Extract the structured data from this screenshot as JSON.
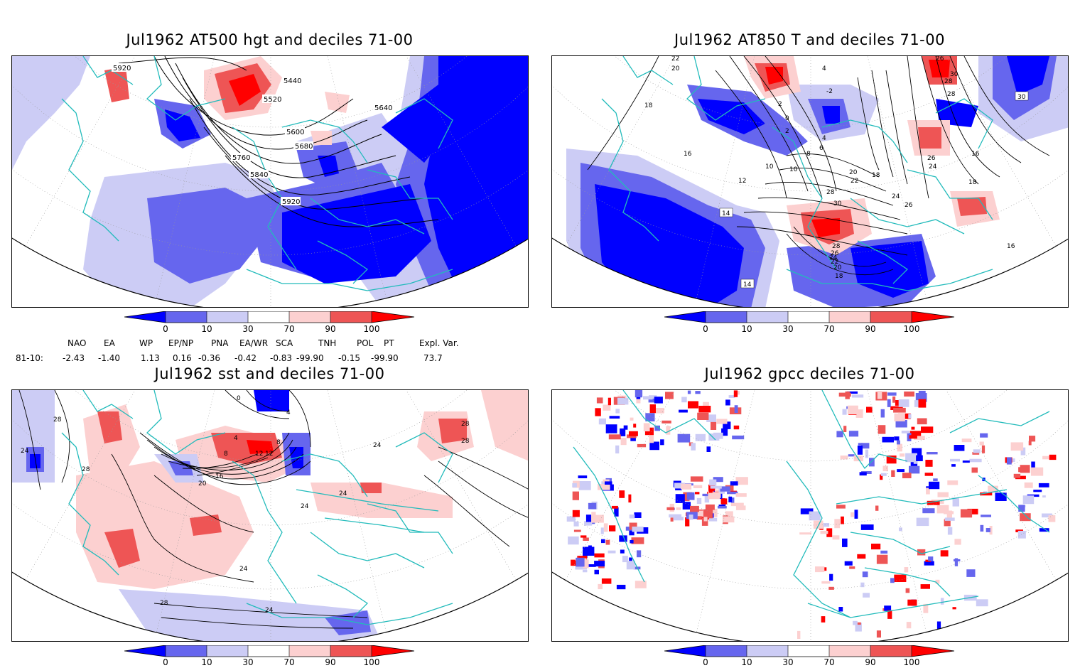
{
  "panels": [
    {
      "id": "p1",
      "title": "Jul1962 AT500 hgt and deciles 71-00",
      "contour_labels": [
        "5920",
        "5440",
        "5520",
        "5600",
        "5640",
        "5680",
        "5760",
        "5840",
        "5920"
      ]
    },
    {
      "id": "p2",
      "title": "Jul1962 AT850 T and deciles 71-00",
      "contour_labels": [
        "22",
        "20",
        "18",
        "16",
        "12",
        "10",
        "14",
        "14",
        "4",
        "2",
        "-2",
        "0",
        "2",
        "4",
        "6",
        "8",
        "10",
        "20",
        "18",
        "22",
        "24",
        "26",
        "28",
        "30",
        "28",
        "26",
        "24",
        "22",
        "20",
        "18",
        "16",
        "16",
        "18",
        "24",
        "26",
        "28",
        "30",
        "26",
        "28",
        "30",
        "16"
      ]
    },
    {
      "id": "p3",
      "title": "Jul1962 sst and deciles 71-00",
      "contour_labels": [
        "28",
        "24",
        "28",
        "20",
        "16",
        "12",
        "8",
        "4",
        "0",
        "4",
        "8",
        "12",
        "24",
        "24",
        "24",
        "28",
        "24",
        "24",
        "28",
        "28"
      ]
    },
    {
      "id": "p4",
      "title": "Jul1962 gpcc deciles 71-00",
      "contour_labels": []
    }
  ],
  "colorbar": {
    "labels": [
      "0",
      "10",
      "30",
      "70",
      "90",
      "100"
    ],
    "colors": [
      "#0000ff",
      "#6666ee",
      "#ccccf5",
      "#ffffff",
      "#fcd0d0",
      "#ee5555",
      "#ff0000"
    ]
  },
  "indices": {
    "headers": [
      "NAO",
      "EA",
      "WP",
      "EP/NP",
      "PNA",
      "EA/WR",
      "SCA",
      "TNH",
      "POL",
      "PT",
      "Expl. Var."
    ],
    "row_label": "81-10:",
    "values": [
      "-2.43",
      "-1.40",
      "1.13",
      "0.16",
      "-0.36",
      "-0.42",
      "-0.83",
      "-99.90",
      "-0.15",
      "-99.90",
      "73.7"
    ]
  },
  "colors": {
    "coast": "#22bbbb",
    "contour": "#000000",
    "deep_blue": "#0000ff",
    "mid_blue": "#6666ee",
    "light_blue": "#ccccf5",
    "light_red": "#fcd0d0",
    "mid_red": "#ee5555",
    "deep_red": "#ff0000"
  }
}
